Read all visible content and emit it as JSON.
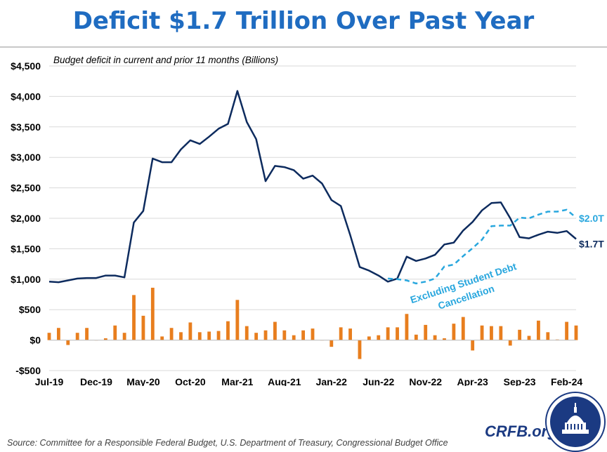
{
  "title": "Deficit $1.7 Trillion Over Past Year",
  "source": "Source: Committee for a Responsible Federal Budget, U.S. Department of Treasury, Congressional Budget Office",
  "brand": "CRFB.org",
  "chart_data": {
    "type": "line",
    "subtitle": "Budget deficit in current and prior 11 months (Billions)",
    "ylim": [
      -500,
      4500
    ],
    "yticks": [
      -500,
      0,
      500,
      1000,
      1500,
      2000,
      2500,
      3000,
      3500,
      4000,
      4500
    ],
    "ytick_labels": [
      "-$500",
      "$0",
      "$500",
      "$1,000",
      "$1,500",
      "$2,000",
      "$2,500",
      "$3,000",
      "$3,500",
      "$4,000",
      "$4,500"
    ],
    "xtick_labels": [
      "Jul-19",
      "Dec-19",
      "May-20",
      "Oct-20",
      "Mar-21",
      "Aug-21",
      "Jan-22",
      "Jun-22",
      "Nov-22",
      "Apr-23",
      "Sep-23",
      "Feb-24"
    ],
    "x": [
      "Jul-19",
      "Aug-19",
      "Sep-19",
      "Oct-19",
      "Nov-19",
      "Dec-19",
      "Jan-20",
      "Feb-20",
      "Mar-20",
      "Apr-20",
      "May-20",
      "Jun-20",
      "Jul-20",
      "Aug-20",
      "Sep-20",
      "Oct-20",
      "Nov-20",
      "Dec-20",
      "Jan-21",
      "Feb-21",
      "Mar-21",
      "Apr-21",
      "May-21",
      "Jun-21",
      "Jul-21",
      "Aug-21",
      "Sep-21",
      "Oct-21",
      "Nov-21",
      "Dec-21",
      "Jan-22",
      "Feb-22",
      "Mar-22",
      "Apr-22",
      "May-22",
      "Jun-22",
      "Jul-22",
      "Aug-22",
      "Sep-22",
      "Oct-22",
      "Nov-22",
      "Dec-22",
      "Jan-23",
      "Feb-23",
      "Mar-23",
      "Apr-23",
      "May-23",
      "Jun-23",
      "Jul-23",
      "Aug-23",
      "Sep-23",
      "Oct-23",
      "Nov-23",
      "Dec-23",
      "Jan-24",
      "Feb-24",
      "Mar-24"
    ],
    "series": [
      {
        "values": [
          960,
          950,
          980,
          1010,
          1020,
          1020,
          1060,
          1060,
          1030,
          1930,
          2120,
          2980,
          2920,
          2920,
          3130,
          3280,
          3220,
          3340,
          3470,
          3550,
          4090,
          3580,
          3300,
          2610,
          2860,
          2840,
          2790,
          2650,
          2700,
          2570,
          2300,
          2200,
          1720,
          1200,
          1140,
          1060,
          960,
          1010,
          1370,
          1300,
          1340,
          1400,
          1570,
          1600,
          1800,
          1940,
          2130,
          2250,
          2260,
          2000,
          1690,
          1670,
          1730,
          1780,
          1760,
          1790,
          1660
        ],
        "color": "#0d2b5e"
      },
      {
        "name": "Excluding Student Debt Cancellation",
        "values": [
          null,
          null,
          null,
          null,
          null,
          null,
          null,
          null,
          null,
          null,
          null,
          null,
          null,
          null,
          null,
          null,
          null,
          null,
          null,
          null,
          null,
          null,
          null,
          null,
          null,
          null,
          null,
          null,
          null,
          null,
          null,
          null,
          null,
          null,
          null,
          null,
          1010,
          1000,
          980,
          930,
          960,
          1010,
          1210,
          1240,
          1380,
          1510,
          1650,
          1870,
          1880,
          1880,
          2010,
          2000,
          2060,
          2110,
          2110,
          2140,
          2010
        ],
        "color": "#29a7de",
        "dashed": true
      },
      {
        "type": "bar",
        "values": [
          120,
          200,
          -80,
          120,
          200,
          0,
          30,
          240,
          120,
          740,
          400,
          860,
          60,
          200,
          130,
          290,
          130,
          140,
          150,
          310,
          660,
          230,
          120,
          160,
          300,
          160,
          80,
          160,
          190,
          0,
          -110,
          210,
          190,
          -310,
          60,
          80,
          210,
          210,
          430,
          90,
          250,
          80,
          30,
          270,
          380,
          -170,
          240,
          230,
          230,
          -90,
          170,
          70,
          320,
          130,
          10,
          300,
          240
        ],
        "color": "#e87e1e"
      }
    ],
    "end_labels": {
      "total": "$1.7T",
      "excluding": "$2.0T"
    },
    "grid": true
  }
}
